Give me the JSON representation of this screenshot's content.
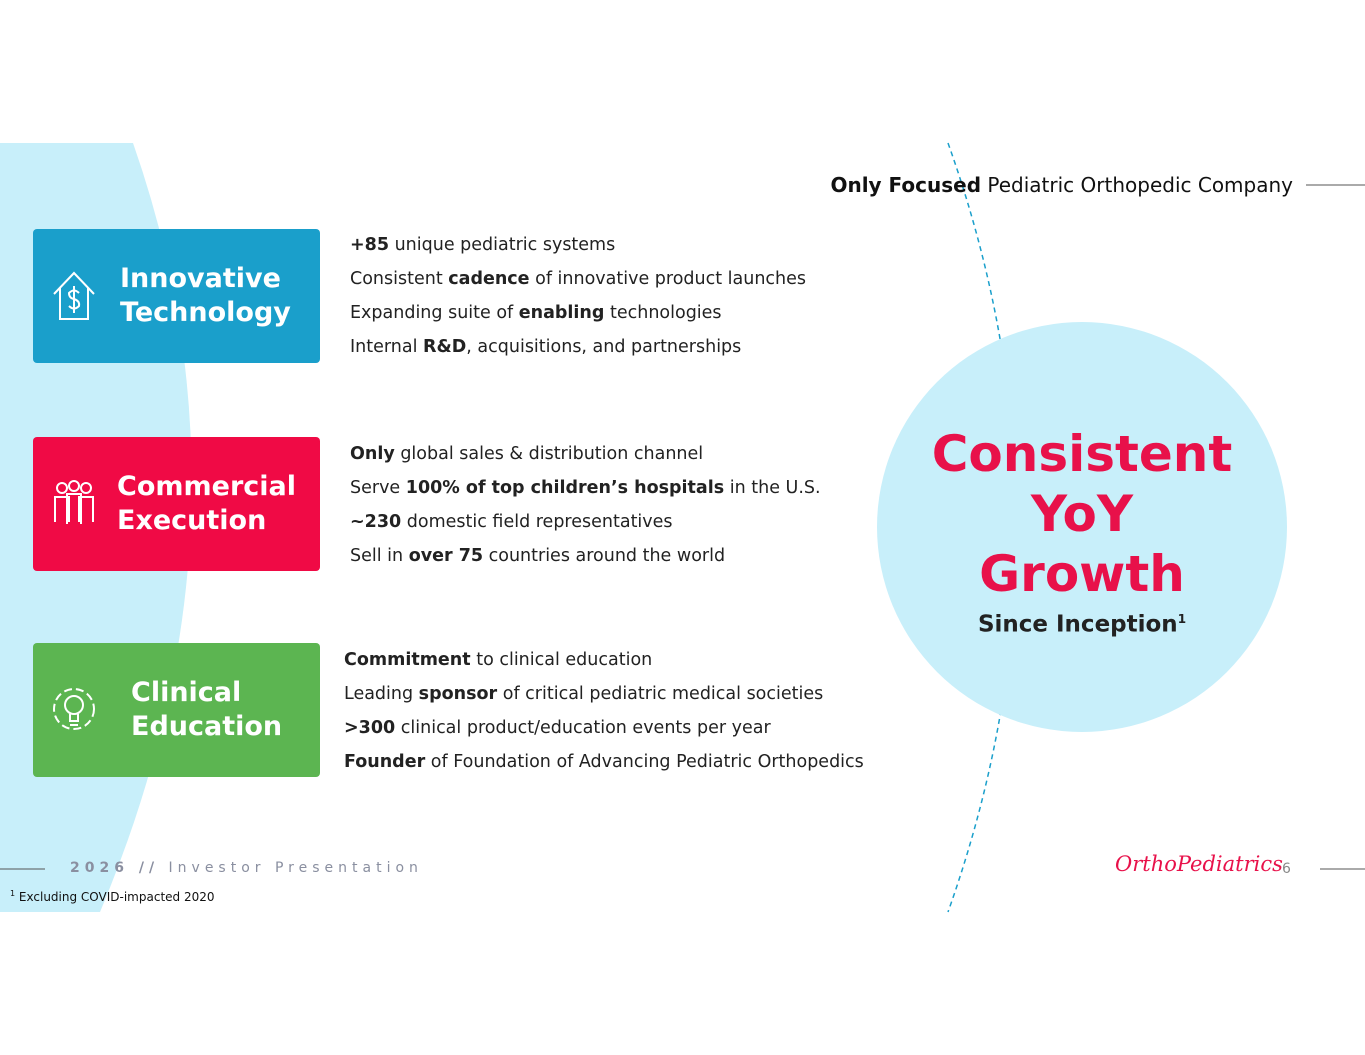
{
  "header": {
    "bold": "Only Focused",
    "rest": "Pediatric Orthopedic Company"
  },
  "pillars": [
    {
      "title": [
        "Innovative",
        "Technology"
      ],
      "color": "#1a9fcb",
      "bullets": [
        [
          {
            "text": "+85",
            "bold": true
          },
          {
            "text": " unique pediatric systems",
            "bold": false
          }
        ],
        [
          {
            "text": "Consistent ",
            "bold": false
          },
          {
            "text": "cadence",
            "bold": true
          },
          {
            "text": " of innovative product launches",
            "bold": false
          }
        ],
        [
          {
            "text": "Expanding suite of ",
            "bold": false
          },
          {
            "text": "enabling",
            "bold": true
          },
          {
            "text": " technologies",
            "bold": false
          }
        ],
        [
          {
            "text": "Internal ",
            "bold": false
          },
          {
            "text": "R&D",
            "bold": true
          },
          {
            "text": ", acquisitions, and partnerships",
            "bold": false
          }
        ]
      ]
    },
    {
      "title": [
        "Commercial",
        "Execution"
      ],
      "color": "#f00a45",
      "bullets": [
        [
          {
            "text": "Only",
            "bold": true
          },
          {
            "text": " global sales & distribution channel",
            "bold": false
          }
        ],
        [
          {
            "text": "Serve ",
            "bold": false
          },
          {
            "text": "100% of top children’s hospitals",
            "bold": true
          },
          {
            "text": " in the U.S.",
            "bold": false
          }
        ],
        [
          {
            "text": "~230",
            "bold": true
          },
          {
            "text": " domestic field representatives",
            "bold": false
          }
        ],
        [
          {
            "text": "Sell in ",
            "bold": false
          },
          {
            "text": "over 75",
            "bold": true
          },
          {
            "text": " countries around the world",
            "bold": false
          }
        ]
      ]
    },
    {
      "title": [
        "Clinical",
        "Education"
      ],
      "color": "#5cb551",
      "bullets": [
        [
          {
            "text": "Commitment",
            "bold": true
          },
          {
            "text": " to clinical education",
            "bold": false
          }
        ],
        [
          {
            "text": "Leading ",
            "bold": false
          },
          {
            "text": "sponsor",
            "bold": true
          },
          {
            "text": " of critical pediatric medical societies",
            "bold": false
          }
        ],
        [
          {
            "text": ">300",
            "bold": true
          },
          {
            "text": " clinical product/education events per year",
            "bold": false
          }
        ],
        [
          {
            "text": "Founder",
            "bold": true
          },
          {
            "text": " of Foundation of Advancing Pediatric Orthopedics",
            "bold": false
          }
        ]
      ]
    }
  ],
  "growth": {
    "lines": [
      "Consistent",
      "YoY",
      "Growth"
    ],
    "since": "Since Inception",
    "marker": "1"
  },
  "footer": {
    "year": "2026 //",
    "label": "Investor Presentation",
    "logo": "OrthoPediatrics",
    "page": "6"
  },
  "footnote": {
    "marker": "1",
    "text": "Excluding COVID-impacted 2020"
  }
}
